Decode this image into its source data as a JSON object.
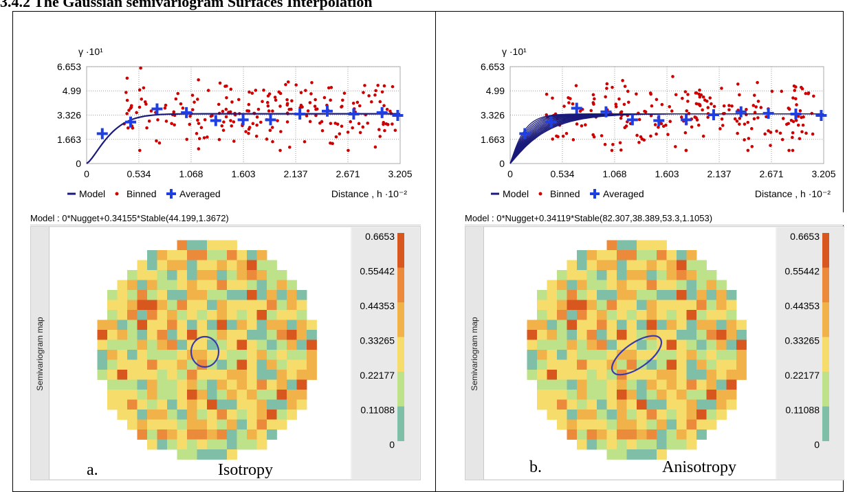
{
  "page": {
    "heading": "3.4.2 The Gaussian semivariogram Surfaces Interpolation",
    "side_label": "Semivariogram map"
  },
  "panels": [
    {
      "model_text": "Model : 0*Nugget+0.34155*Stable(44.199,1.3672)",
      "caption_letter": "a.",
      "caption_text": "Isotropy"
    },
    {
      "model_text": "Model : 0*Nugget+0.34119*Stable(82.307,38.389,53.3,1.1053)",
      "caption_letter": "b.",
      "caption_text": "Anisotropy"
    }
  ],
  "colors": {
    "model_line": "#1a1a7a",
    "binned": "#cc0000",
    "averaged": "#1f3fe0",
    "ellipse": "#3a3aa8",
    "scale": [
      "#1e8fd0",
      "#7fbfa8",
      "#bde28a",
      "#f6dc6a",
      "#f2b24a",
      "#ec8a3c",
      "#d8571e"
    ]
  },
  "chart_data": [
    {
      "type": "scatter",
      "title": "",
      "ylabel": "γ ·10¹",
      "xlabel": "Distance , h ·10⁻²",
      "ylim": [
        0,
        6.653
      ],
      "xlim": [
        0,
        3.205
      ],
      "yticks": [
        "0",
        "1.663",
        "3.326",
        "4.99",
        "6.653"
      ],
      "xticks": [
        "0",
        "0.534",
        "1.068",
        "1.603",
        "2.137",
        "2.671",
        "3.205"
      ],
      "legend": [
        "Model",
        "Binned",
        "Averaged"
      ],
      "grid": true,
      "model": {
        "sill": 3.4155,
        "range": 0.79,
        "shape": 1.3672,
        "anisotropic": false
      },
      "averaged": {
        "x": [
          0.16,
          0.45,
          0.72,
          1.02,
          1.32,
          1.6,
          1.88,
          2.18,
          2.46,
          2.73,
          3.02,
          3.18
        ],
        "y": [
          2.05,
          2.85,
          3.75,
          3.5,
          2.95,
          3.0,
          3.0,
          3.4,
          3.6,
          3.4,
          3.5,
          3.3
        ]
      },
      "binned_seed": 11,
      "binned_count": 220
    },
    {
      "type": "scatter",
      "title": "",
      "ylabel": "γ ·10¹",
      "xlabel": "Distance , h ·10⁻²",
      "ylim": [
        0,
        6.653
      ],
      "xlim": [
        0,
        3.205
      ],
      "yticks": [
        "0",
        "1.663",
        "3.326",
        "4.99",
        "6.653"
      ],
      "xticks": [
        "0",
        "0.534",
        "1.068",
        "1.603",
        "2.137",
        "2.671",
        "3.205"
      ],
      "legend": [
        "Model",
        "Binned",
        "Averaged"
      ],
      "grid": true,
      "model": {
        "sill": 3.4119,
        "range": 0.9,
        "shape": 1.1053,
        "anisotropic": true
      },
      "averaged": {
        "x": [
          0.15,
          0.42,
          0.68,
          0.98,
          1.25,
          1.52,
          1.8,
          2.08,
          2.36,
          2.64,
          2.92,
          3.18
        ],
        "y": [
          2.05,
          2.85,
          3.8,
          3.55,
          3.0,
          2.95,
          3.0,
          3.35,
          3.55,
          3.45,
          3.4,
          3.3
        ]
      },
      "binned_seed": 29,
      "binned_count": 220
    },
    {
      "type": "heatmap",
      "title": "Semivariogram map",
      "scale_labels": [
        "0.6653",
        "0.55442",
        "0.44353",
        "0.33265",
        "0.22177",
        "0.11088",
        "0"
      ],
      "grid_size": 22,
      "seed": 7,
      "ellipse": {
        "type": "circle"
      }
    },
    {
      "type": "heatmap",
      "title": "Semivariogram map",
      "scale_labels": [
        "0.6653",
        "0.55442",
        "0.44353",
        "0.33265",
        "0.22177",
        "0.11088",
        "0"
      ],
      "grid_size": 22,
      "seed": 7,
      "ellipse": {
        "type": "rotated"
      }
    }
  ]
}
